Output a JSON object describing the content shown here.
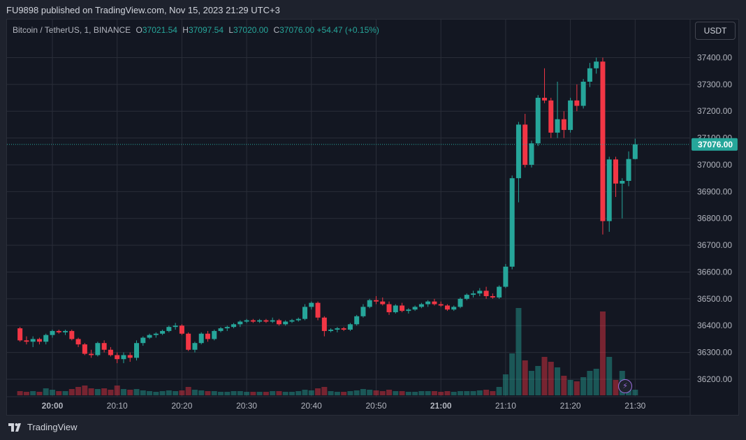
{
  "publisher_line": "FU9898 published on TradingView.com, Nov 15, 2023 21:29 UTC+3",
  "symbol": "Bitcoin / TetherUS, 1, BINANCE",
  "ohlc": {
    "o_label": "O",
    "o": "37021.54",
    "h_label": "H",
    "h": "37097.54",
    "l_label": "L",
    "l": "37020.00",
    "c_label": "C",
    "c": "37076.00",
    "change": "+54.47 (+0.15%)"
  },
  "currency_button": "USDT",
  "last_price_label": "37076.00",
  "footer_brand": "TradingView",
  "colors": {
    "up": "#26a69a",
    "down": "#f23645",
    "bg": "#131722",
    "grid": "#2a2e39",
    "text": "#b2b5be",
    "accent": "#9c6ede"
  },
  "icons": [
    "tradingview-logo-icon",
    "lightning-icon"
  ],
  "chart_data": {
    "type": "candlestick",
    "interval": "1 minute",
    "ylim": [
      36140,
      37440
    ],
    "y_ticks": [
      36200,
      36300,
      36400,
      36500,
      36600,
      36700,
      36800,
      36900,
      37000,
      37100,
      37200,
      37300,
      37400
    ],
    "y_tick_labels": [
      "36200.00",
      "36300.00",
      "36400.00",
      "36500.00",
      "36600.00",
      "36700.00",
      "36800.00",
      "36900.00",
      "37000.00",
      "37100.00",
      "37200.00",
      "37300.00",
      "37400.00"
    ],
    "x_tick_labels": [
      {
        "label": "20:00",
        "minute": 0
      },
      {
        "label": "20:10",
        "minute": 10
      },
      {
        "label": "20:20",
        "minute": 20
      },
      {
        "label": "20:30",
        "minute": 30
      },
      {
        "label": "20:40",
        "minute": 40
      },
      {
        "label": "20:50",
        "minute": 50
      },
      {
        "label": "21:00",
        "minute": 60
      },
      {
        "label": "21:10",
        "minute": 70
      },
      {
        "label": "21:20",
        "minute": 80
      },
      {
        "label": "21:30",
        "minute": 90
      }
    ],
    "last_price": 37076,
    "candles": [
      {
        "m": -5,
        "o": 36390,
        "h": 36395,
        "l": 36340,
        "c": 36345,
        "v": 6
      },
      {
        "m": -4,
        "o": 36345,
        "h": 36360,
        "l": 36330,
        "c": 36340,
        "v": 5
      },
      {
        "m": -3,
        "o": 36340,
        "h": 36360,
        "l": 36320,
        "c": 36350,
        "v": 6
      },
      {
        "m": -2,
        "o": 36350,
        "h": 36355,
        "l": 36330,
        "c": 36340,
        "v": 5
      },
      {
        "m": -1,
        "o": 36340,
        "h": 36370,
        "l": 36330,
        "c": 36365,
        "v": 10
      },
      {
        "m": 0,
        "o": 36365,
        "h": 36385,
        "l": 36355,
        "c": 36380,
        "v": 8
      },
      {
        "m": 1,
        "o": 36380,
        "h": 36385,
        "l": 36370,
        "c": 36375,
        "v": 6
      },
      {
        "m": 2,
        "o": 36375,
        "h": 36385,
        "l": 36365,
        "c": 36380,
        "v": 6
      },
      {
        "m": 3,
        "o": 36380,
        "h": 36385,
        "l": 36345,
        "c": 36350,
        "v": 9
      },
      {
        "m": 4,
        "o": 36350,
        "h": 36355,
        "l": 36320,
        "c": 36330,
        "v": 12
      },
      {
        "m": 5,
        "o": 36330,
        "h": 36335,
        "l": 36290,
        "c": 36295,
        "v": 14
      },
      {
        "m": 6,
        "o": 36295,
        "h": 36310,
        "l": 36280,
        "c": 36290,
        "v": 10
      },
      {
        "m": 7,
        "o": 36290,
        "h": 36340,
        "l": 36285,
        "c": 36335,
        "v": 9
      },
      {
        "m": 8,
        "o": 36335,
        "h": 36345,
        "l": 36300,
        "c": 36310,
        "v": 10
      },
      {
        "m": 9,
        "o": 36310,
        "h": 36320,
        "l": 36285,
        "c": 36290,
        "v": 8
      },
      {
        "m": 10,
        "o": 36290,
        "h": 36300,
        "l": 36260,
        "c": 36275,
        "v": 14
      },
      {
        "m": 11,
        "o": 36275,
        "h": 36300,
        "l": 36260,
        "c": 36290,
        "v": 9
      },
      {
        "m": 12,
        "o": 36290,
        "h": 36300,
        "l": 36265,
        "c": 36280,
        "v": 8
      },
      {
        "m": 13,
        "o": 36280,
        "h": 36345,
        "l": 36270,
        "c": 36335,
        "v": 9
      },
      {
        "m": 14,
        "o": 36335,
        "h": 36360,
        "l": 36325,
        "c": 36355,
        "v": 7
      },
      {
        "m": 15,
        "o": 36355,
        "h": 36370,
        "l": 36350,
        "c": 36365,
        "v": 6
      },
      {
        "m": 16,
        "o": 36365,
        "h": 36375,
        "l": 36355,
        "c": 36370,
        "v": 5
      },
      {
        "m": 17,
        "o": 36370,
        "h": 36385,
        "l": 36365,
        "c": 36380,
        "v": 6
      },
      {
        "m": 18,
        "o": 36380,
        "h": 36400,
        "l": 36375,
        "c": 36395,
        "v": 7
      },
      {
        "m": 19,
        "o": 36395,
        "h": 36410,
        "l": 36385,
        "c": 36400,
        "v": 6
      },
      {
        "m": 20,
        "o": 36400,
        "h": 36405,
        "l": 36365,
        "c": 36370,
        "v": 7
      },
      {
        "m": 21,
        "o": 36370,
        "h": 36375,
        "l": 36305,
        "c": 36310,
        "v": 12
      },
      {
        "m": 22,
        "o": 36310,
        "h": 36340,
        "l": 36300,
        "c": 36335,
        "v": 8
      },
      {
        "m": 23,
        "o": 36335,
        "h": 36375,
        "l": 36330,
        "c": 36370,
        "v": 7
      },
      {
        "m": 24,
        "o": 36370,
        "h": 36380,
        "l": 36340,
        "c": 36350,
        "v": 6
      },
      {
        "m": 25,
        "o": 36350,
        "h": 36385,
        "l": 36345,
        "c": 36380,
        "v": 6
      },
      {
        "m": 26,
        "o": 36380,
        "h": 36395,
        "l": 36375,
        "c": 36390,
        "v": 5
      },
      {
        "m": 27,
        "o": 36390,
        "h": 36400,
        "l": 36380,
        "c": 36395,
        "v": 5
      },
      {
        "m": 28,
        "o": 36395,
        "h": 36410,
        "l": 36390,
        "c": 36405,
        "v": 6
      },
      {
        "m": 29,
        "o": 36405,
        "h": 36420,
        "l": 36395,
        "c": 36415,
        "v": 6
      },
      {
        "m": 30,
        "o": 36415,
        "h": 36425,
        "l": 36410,
        "c": 36420,
        "v": 5
      },
      {
        "m": 31,
        "o": 36420,
        "h": 36425,
        "l": 36410,
        "c": 36415,
        "v": 5
      },
      {
        "m": 32,
        "o": 36415,
        "h": 36425,
        "l": 36410,
        "c": 36420,
        "v": 5
      },
      {
        "m": 33,
        "o": 36420,
        "h": 36425,
        "l": 36410,
        "c": 36415,
        "v": 5
      },
      {
        "m": 34,
        "o": 36415,
        "h": 36430,
        "l": 36410,
        "c": 36420,
        "v": 6
      },
      {
        "m": 35,
        "o": 36420,
        "h": 36425,
        "l": 36400,
        "c": 36405,
        "v": 6
      },
      {
        "m": 36,
        "o": 36405,
        "h": 36420,
        "l": 36400,
        "c": 36415,
        "v": 5
      },
      {
        "m": 37,
        "o": 36415,
        "h": 36425,
        "l": 36410,
        "c": 36420,
        "v": 5
      },
      {
        "m": 38,
        "o": 36420,
        "h": 36430,
        "l": 36415,
        "c": 36425,
        "v": 6
      },
      {
        "m": 39,
        "o": 36425,
        "h": 36480,
        "l": 36420,
        "c": 36470,
        "v": 8
      },
      {
        "m": 40,
        "o": 36470,
        "h": 36490,
        "l": 36460,
        "c": 36485,
        "v": 7
      },
      {
        "m": 41,
        "o": 36485,
        "h": 36490,
        "l": 36420,
        "c": 36430,
        "v": 10
      },
      {
        "m": 42,
        "o": 36430,
        "h": 36435,
        "l": 36360,
        "c": 36380,
        "v": 12
      },
      {
        "m": 43,
        "o": 36380,
        "h": 36390,
        "l": 36375,
        "c": 36385,
        "v": 6
      },
      {
        "m": 44,
        "o": 36385,
        "h": 36395,
        "l": 36375,
        "c": 36390,
        "v": 5
      },
      {
        "m": 45,
        "o": 36390,
        "h": 36395,
        "l": 36380,
        "c": 36385,
        "v": 5
      },
      {
        "m": 46,
        "o": 36385,
        "h": 36410,
        "l": 36380,
        "c": 36405,
        "v": 6
      },
      {
        "m": 47,
        "o": 36405,
        "h": 36440,
        "l": 36400,
        "c": 36435,
        "v": 7
      },
      {
        "m": 48,
        "o": 36435,
        "h": 36480,
        "l": 36430,
        "c": 36470,
        "v": 9
      },
      {
        "m": 49,
        "o": 36470,
        "h": 36500,
        "l": 36465,
        "c": 36495,
        "v": 8
      },
      {
        "m": 50,
        "o": 36495,
        "h": 36510,
        "l": 36480,
        "c": 36490,
        "v": 7
      },
      {
        "m": 51,
        "o": 36490,
        "h": 36505,
        "l": 36475,
        "c": 36480,
        "v": 6
      },
      {
        "m": 52,
        "o": 36480,
        "h": 36490,
        "l": 36440,
        "c": 36450,
        "v": 8
      },
      {
        "m": 53,
        "o": 36450,
        "h": 36480,
        "l": 36445,
        "c": 36475,
        "v": 6
      },
      {
        "m": 54,
        "o": 36475,
        "h": 36485,
        "l": 36450,
        "c": 36455,
        "v": 6
      },
      {
        "m": 55,
        "o": 36455,
        "h": 36465,
        "l": 36445,
        "c": 36460,
        "v": 5
      },
      {
        "m": 56,
        "o": 36460,
        "h": 36475,
        "l": 36455,
        "c": 36470,
        "v": 5
      },
      {
        "m": 57,
        "o": 36470,
        "h": 36485,
        "l": 36465,
        "c": 36480,
        "v": 6
      },
      {
        "m": 58,
        "o": 36480,
        "h": 36495,
        "l": 36470,
        "c": 36490,
        "v": 6
      },
      {
        "m": 59,
        "o": 36490,
        "h": 36500,
        "l": 36475,
        "c": 36480,
        "v": 6
      },
      {
        "m": 60,
        "o": 36480,
        "h": 36490,
        "l": 36470,
        "c": 36475,
        "v": 5
      },
      {
        "m": 61,
        "o": 36475,
        "h": 36480,
        "l": 36455,
        "c": 36460,
        "v": 6
      },
      {
        "m": 62,
        "o": 36460,
        "h": 36475,
        "l": 36455,
        "c": 36470,
        "v": 5
      },
      {
        "m": 63,
        "o": 36470,
        "h": 36505,
        "l": 36465,
        "c": 36500,
        "v": 6
      },
      {
        "m": 64,
        "o": 36500,
        "h": 36520,
        "l": 36495,
        "c": 36515,
        "v": 6
      },
      {
        "m": 65,
        "o": 36515,
        "h": 36530,
        "l": 36505,
        "c": 36520,
        "v": 6
      },
      {
        "m": 66,
        "o": 36520,
        "h": 36540,
        "l": 36510,
        "c": 36530,
        "v": 7
      },
      {
        "m": 67,
        "o": 36530,
        "h": 36545,
        "l": 36500,
        "c": 36510,
        "v": 8
      },
      {
        "m": 68,
        "o": 36510,
        "h": 36520,
        "l": 36500,
        "c": 36505,
        "v": 6
      },
      {
        "m": 69,
        "o": 36505,
        "h": 36550,
        "l": 36500,
        "c": 36545,
        "v": 12
      },
      {
        "m": 70,
        "o": 36545,
        "h": 36630,
        "l": 36540,
        "c": 36620,
        "v": 30
      },
      {
        "m": 71,
        "o": 36620,
        "h": 36960,
        "l": 36610,
        "c": 36950,
        "v": 60
      },
      {
        "m": 72,
        "o": 36950,
        "h": 37160,
        "l": 36860,
        "c": 37150,
        "v": 125
      },
      {
        "m": 73,
        "o": 37150,
        "h": 37190,
        "l": 36990,
        "c": 37000,
        "v": 50
      },
      {
        "m": 74,
        "o": 37000,
        "h": 37090,
        "l": 36990,
        "c": 37080,
        "v": 35
      },
      {
        "m": 75,
        "o": 37080,
        "h": 37260,
        "l": 37070,
        "c": 37250,
        "v": 42
      },
      {
        "m": 76,
        "o": 37250,
        "h": 37360,
        "l": 37230,
        "c": 37240,
        "v": 55
      },
      {
        "m": 77,
        "o": 37240,
        "h": 37250,
        "l": 37100,
        "c": 37120,
        "v": 48
      },
      {
        "m": 78,
        "o": 37120,
        "h": 37310,
        "l": 37100,
        "c": 37170,
        "v": 40
      },
      {
        "m": 79,
        "o": 37170,
        "h": 37200,
        "l": 37100,
        "c": 37130,
        "v": 28
      },
      {
        "m": 80,
        "o": 37130,
        "h": 37250,
        "l": 37120,
        "c": 37240,
        "v": 22
      },
      {
        "m": 81,
        "o": 37240,
        "h": 37300,
        "l": 37200,
        "c": 37220,
        "v": 20
      },
      {
        "m": 82,
        "o": 37220,
        "h": 37320,
        "l": 37210,
        "c": 37310,
        "v": 26
      },
      {
        "m": 83,
        "o": 37310,
        "h": 37380,
        "l": 37290,
        "c": 37360,
        "v": 35
      },
      {
        "m": 84,
        "o": 37360,
        "h": 37400,
        "l": 37340,
        "c": 37385,
        "v": 38
      },
      {
        "m": 85,
        "o": 37385,
        "h": 37400,
        "l": 36740,
        "c": 36790,
        "v": 120
      },
      {
        "m": 86,
        "o": 36790,
        "h": 37030,
        "l": 36750,
        "c": 37020,
        "v": 55
      },
      {
        "m": 87,
        "o": 37020,
        "h": 37030,
        "l": 36880,
        "c": 36930,
        "v": 22
      },
      {
        "m": 88,
        "o": 36930,
        "h": 36950,
        "l": 36800,
        "c": 36940,
        "v": 35
      },
      {
        "m": 89,
        "o": 36940,
        "h": 37050,
        "l": 36920,
        "c": 37021.54,
        "v": 15
      },
      {
        "m": 90,
        "o": 37021.54,
        "h": 37097.54,
        "l": 37020,
        "c": 37076,
        "v": 8
      }
    ]
  }
}
